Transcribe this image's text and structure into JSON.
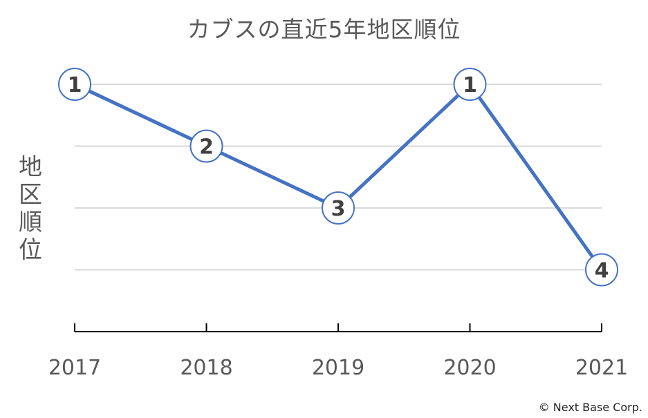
{
  "chart_data": {
    "type": "line",
    "title": "カブスの直近5年地区順位",
    "xlabel": "",
    "ylabel": "地区順位",
    "categories": [
      "2017",
      "2018",
      "2019",
      "2020",
      "2021"
    ],
    "series": [
      {
        "values": [
          1,
          2,
          3,
          1,
          4
        ],
        "data_labels": [
          "1",
          "2",
          "3",
          "1",
          "4"
        ]
      }
    ],
    "ylim": [
      1,
      5
    ],
    "y_inverted": true,
    "gridlines": true,
    "legend": "none"
  },
  "footer": {
    "copyright": "© Next Base Corp."
  },
  "colors": {
    "line": "#4472C4",
    "marker_fill": "#FFFFFF",
    "marker_stroke": "#4472C4",
    "grid": "#D9D9D9",
    "axis": "#000000",
    "text": "#595959"
  }
}
